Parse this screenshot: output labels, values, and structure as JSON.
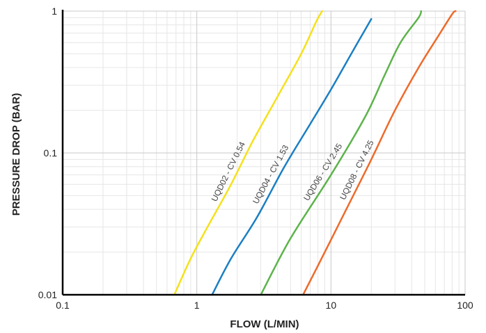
{
  "chart_data": {
    "type": "line",
    "xlabel": "FLOW (L/MIN)",
    "ylabel": "PRESSURE DROP (BAR)",
    "xscale": "log",
    "yscale": "log",
    "xlim": [
      0.1,
      100
    ],
    "ylim": [
      0.01,
      1
    ],
    "grid": true,
    "x_ticks": [
      "0.1",
      "1",
      "10",
      "100"
    ],
    "y_ticks": [
      "0.01",
      "0.1",
      "1"
    ],
    "series": [
      {
        "name": "UQD02 - CV 0.54",
        "color": "#f5e11a",
        "points": [
          [
            0.68,
            0.01
          ],
          [
            0.9,
            0.018
          ],
          [
            1.2,
            0.03
          ],
          [
            1.8,
            0.06
          ],
          [
            2.6,
            0.12
          ],
          [
            4.0,
            0.25
          ],
          [
            6.0,
            0.5
          ],
          [
            7.8,
            0.85
          ],
          [
            8.6,
            1.0
          ]
        ]
      },
      {
        "name": "UQD04 - CV 1.53",
        "color": "#1a7fc4",
        "points": [
          [
            1.3,
            0.01
          ],
          [
            1.8,
            0.018
          ],
          [
            2.8,
            0.035
          ],
          [
            4.5,
            0.08
          ],
          [
            7.0,
            0.16
          ],
          [
            10.0,
            0.28
          ],
          [
            15.0,
            0.55
          ],
          [
            20.0,
            0.88
          ]
        ]
      },
      {
        "name": "UQD06 - CV 2.45",
        "color": "#5cb34a",
        "points": [
          [
            3.0,
            0.01
          ],
          [
            5.0,
            0.025
          ],
          [
            10.0,
            0.07
          ],
          [
            18.0,
            0.18
          ],
          [
            25.0,
            0.35
          ],
          [
            33.0,
            0.6
          ],
          [
            45.0,
            0.9
          ],
          [
            47.0,
            1.0
          ]
        ]
      },
      {
        "name": "UQD08 - CV 4.25",
        "color": "#ee6a2a",
        "points": [
          [
            6.2,
            0.01
          ],
          [
            9.0,
            0.02
          ],
          [
            13.0,
            0.04
          ],
          [
            20.0,
            0.09
          ],
          [
            30.0,
            0.2
          ],
          [
            45.0,
            0.4
          ],
          [
            62.0,
            0.65
          ],
          [
            80.0,
            0.95
          ],
          [
            85.0,
            1.0
          ]
        ]
      }
    ]
  }
}
